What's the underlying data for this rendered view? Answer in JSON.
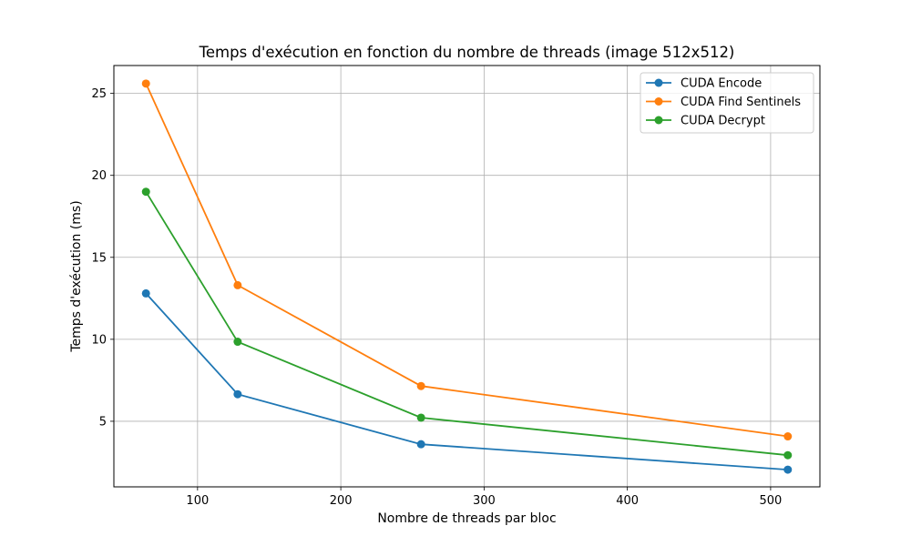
{
  "chart_data": {
    "type": "line",
    "title": "Temps d'exécution en fonction du nombre de threads (image 512x512)",
    "xlabel": "Nombre de threads par bloc",
    "ylabel": "Temps d'exécution (ms)",
    "xlim": [
      41.6,
      534.4
    ],
    "ylim": [
      1.0,
      26.7
    ],
    "xticks": [
      100,
      200,
      300,
      400,
      500
    ],
    "yticks": [
      5,
      10,
      15,
      20,
      25
    ],
    "grid": true,
    "legend_position": "top-right",
    "x": [
      64,
      128,
      256,
      512
    ],
    "series": [
      {
        "name": "CUDA Encode",
        "color": "#1f77b4",
        "values": [
          12.8,
          6.65,
          3.6,
          2.05
        ]
      },
      {
        "name": "CUDA Find Sentinels",
        "color": "#ff7f0e",
        "values": [
          25.6,
          13.3,
          7.15,
          4.08
        ]
      },
      {
        "name": "CUDA Decrypt",
        "color": "#2ca02c",
        "values": [
          19.0,
          9.85,
          5.22,
          2.93
        ]
      }
    ]
  }
}
